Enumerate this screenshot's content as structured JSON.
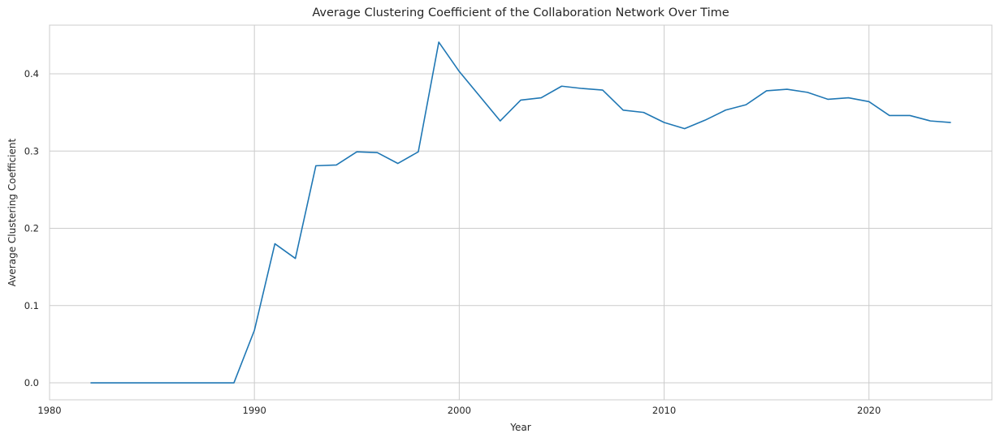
{
  "chart_data": {
    "type": "line",
    "title": "Average Clustering Coefficient of the Collaboration Network Over Time",
    "xlabel": "Year",
    "ylabel": "Average Clustering Coefficient",
    "xlim": [
      1980,
      2026
    ],
    "ylim": [
      -0.022,
      0.463
    ],
    "xticks": [
      1980,
      1990,
      2000,
      2010,
      2020
    ],
    "yticks": [
      0.0,
      0.1,
      0.2,
      0.3,
      0.4
    ],
    "ytick_labels": [
      "0.0",
      "0.1",
      "0.2",
      "0.3",
      "0.4"
    ],
    "grid": true,
    "colors": {
      "series": "#1f77b4",
      "grid": "#cccccc",
      "text": "#262626"
    },
    "series": [
      {
        "x": [
          1982,
          1983,
          1984,
          1985,
          1986,
          1987,
          1988,
          1989,
          1990,
          1991,
          1992,
          1993,
          1994,
          1995,
          1996,
          1997,
          1998,
          1999,
          2000,
          2001,
          2002,
          2003,
          2004,
          2005,
          2006,
          2007,
          2008,
          2009,
          2010,
          2011,
          2012,
          2013,
          2014,
          2015,
          2016,
          2017,
          2018,
          2019,
          2020,
          2021,
          2022,
          2023,
          2024
        ],
        "values": [
          0.0,
          0.0,
          0.0,
          0.0,
          0.0,
          0.0,
          0.0,
          0.0,
          0.068,
          0.18,
          0.161,
          0.281,
          0.282,
          0.299,
          0.298,
          0.284,
          0.299,
          0.441,
          0.403,
          0.371,
          0.339,
          0.366,
          0.369,
          0.384,
          0.381,
          0.379,
          0.353,
          0.35,
          0.337,
          0.329,
          0.34,
          0.353,
          0.36,
          0.378,
          0.38,
          0.376,
          0.367,
          0.369,
          0.364,
          0.346,
          0.346,
          0.339,
          0.337
        ]
      }
    ]
  }
}
